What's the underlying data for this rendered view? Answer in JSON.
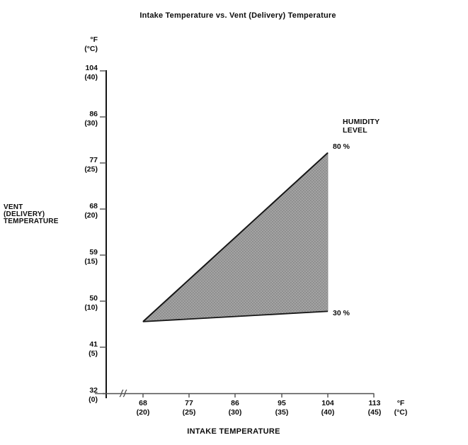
{
  "title": "Intake Temperature vs. Vent (Delivery) Temperature",
  "chart_data": {
    "type": "area",
    "title": "Intake Temperature vs. Vent (Delivery) Temperature",
    "xlabel": "INTAKE TEMPERATURE",
    "ylabel": "VENT (DELIVERY) TEMPERATURE",
    "ylabel_lines": [
      "VENT",
      "(DELIVERY)",
      "TEMPERATURE"
    ],
    "axis_units": {
      "fahrenheit": "°F",
      "celsius": "(°C)"
    },
    "x_ticks": [
      {
        "f": "68",
        "c": "(20)"
      },
      {
        "f": "77",
        "c": "(25)"
      },
      {
        "f": "86",
        "c": "(30)"
      },
      {
        "f": "95",
        "c": "(35)"
      },
      {
        "f": "104",
        "c": "(40)"
      },
      {
        "f": "113",
        "c": "(45)"
      }
    ],
    "y_ticks": [
      {
        "f": "104",
        "c": "(40)"
      },
      {
        "f": "86",
        "c": "(30)"
      },
      {
        "f": "77",
        "c": "(25)"
      },
      {
        "f": "68",
        "c": "(20)"
      },
      {
        "f": "59",
        "c": "(15)"
      },
      {
        "f": "50",
        "c": "(10)"
      },
      {
        "f": "41",
        "c": "(5)"
      },
      {
        "f": "32",
        "c": "(0)"
      }
    ],
    "xlim_f": [
      68,
      113
    ],
    "ylim_f": [
      32,
      104
    ],
    "grid": false,
    "x_axis_break": true,
    "region_label": "HUMIDITY LEVEL",
    "series": [
      {
        "name": "80 %",
        "humidity_percent": 80,
        "points_f": [
          [
            68,
            46
          ],
          [
            104,
            79
          ]
        ]
      },
      {
        "name": "30 %",
        "humidity_percent": 30,
        "points_f": [
          [
            68,
            46
          ],
          [
            104,
            48
          ]
        ]
      }
    ],
    "fill_color": "#9c9c9c",
    "line_color": "#161616"
  }
}
